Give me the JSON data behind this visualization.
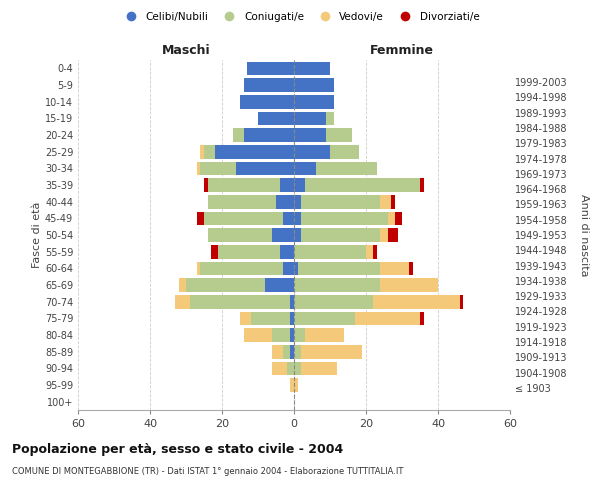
{
  "age_groups": [
    "100+",
    "95-99",
    "90-94",
    "85-89",
    "80-84",
    "75-79",
    "70-74",
    "65-69",
    "60-64",
    "55-59",
    "50-54",
    "45-49",
    "40-44",
    "35-39",
    "30-34",
    "25-29",
    "20-24",
    "15-19",
    "10-14",
    "5-9",
    "0-4"
  ],
  "birth_years": [
    "≤ 1903",
    "1904-1908",
    "1909-1913",
    "1914-1918",
    "1919-1923",
    "1924-1928",
    "1929-1933",
    "1934-1938",
    "1939-1943",
    "1944-1948",
    "1949-1953",
    "1954-1958",
    "1959-1963",
    "1964-1968",
    "1969-1973",
    "1974-1978",
    "1979-1983",
    "1984-1988",
    "1989-1993",
    "1994-1998",
    "1999-2003"
  ],
  "colors": {
    "celibe": "#4472c4",
    "coniugato": "#b5cc8e",
    "vedovo": "#f5c97a",
    "divorziato": "#c00000"
  },
  "maschi": {
    "celibe": [
      0,
      0,
      0,
      1,
      1,
      1,
      1,
      8,
      3,
      4,
      6,
      3,
      5,
      4,
      16,
      22,
      14,
      10,
      15,
      14,
      13
    ],
    "coniugato": [
      0,
      0,
      2,
      2,
      5,
      11,
      28,
      22,
      23,
      17,
      18,
      22,
      19,
      20,
      10,
      3,
      3,
      0,
      0,
      0,
      0
    ],
    "vedovo": [
      0,
      1,
      4,
      3,
      8,
      3,
      4,
      2,
      1,
      0,
      0,
      0,
      0,
      0,
      1,
      1,
      0,
      0,
      0,
      0,
      0
    ],
    "divorziato": [
      0,
      0,
      0,
      0,
      0,
      0,
      0,
      0,
      0,
      2,
      0,
      2,
      0,
      1,
      0,
      0,
      0,
      0,
      0,
      0,
      0
    ]
  },
  "femmine": {
    "nubile": [
      0,
      0,
      0,
      0,
      0,
      0,
      0,
      0,
      1,
      0,
      2,
      2,
      2,
      3,
      6,
      10,
      9,
      9,
      11,
      11,
      10
    ],
    "coniugata": [
      0,
      0,
      2,
      2,
      3,
      17,
      22,
      24,
      23,
      20,
      22,
      24,
      22,
      32,
      17,
      8,
      7,
      2,
      0,
      0,
      0
    ],
    "vedova": [
      0,
      1,
      10,
      17,
      11,
      18,
      24,
      16,
      8,
      2,
      2,
      2,
      3,
      0,
      0,
      0,
      0,
      0,
      0,
      0,
      0
    ],
    "divorziata": [
      0,
      0,
      0,
      0,
      0,
      1,
      1,
      0,
      1,
      1,
      3,
      2,
      1,
      1,
      0,
      0,
      0,
      0,
      0,
      0,
      0
    ]
  },
  "xlim": 60,
  "title": "Popolazione per età, sesso e stato civile - 2004",
  "subtitle": "COMUNE DI MONTEGABBIONE (TR) - Dati ISTAT 1° gennaio 2004 - Elaborazione TUTTITALIA.IT",
  "ylabel_left": "Fasce di età",
  "ylabel_right": "Anni di nascita",
  "xlabel_maschi": "Maschi",
  "xlabel_femmine": "Femmine",
  "legend_labels": [
    "Celibi/Nubili",
    "Coniugati/e",
    "Vedovi/e",
    "Divorziati/e"
  ],
  "bg_color": "#ffffff",
  "grid_color": "#cccccc",
  "legend_marker_colors": [
    "#4472c4",
    "#b5cc8e",
    "#f5c97a",
    "#c00000"
  ]
}
